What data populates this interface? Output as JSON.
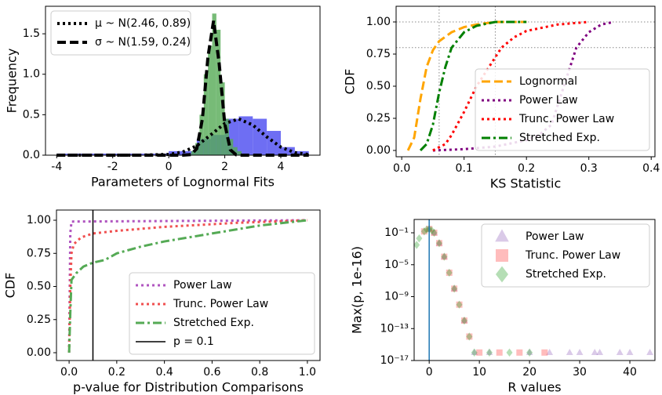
{
  "chart_data": [
    {
      "type": "histogram",
      "xlabel": "Parameters of Lognormal Fits",
      "ylabel": "Frequency",
      "xlim": [
        -4.4,
        5.4
      ],
      "ylim": [
        0,
        1.84
      ],
      "xticks": [
        -4,
        -2,
        0,
        2,
        4
      ],
      "yticks": [
        {
          "value": 0,
          "label": "0.0"
        },
        {
          "value": 0.5,
          "label": "0.5"
        },
        {
          "value": 1,
          "label": "1.0"
        },
        {
          "value": 1.5,
          "label": "1.5"
        }
      ],
      "histograms": [
        {
          "color": "#4a4af0",
          "bins": [
            -4,
            -3.5,
            -3,
            -2.5,
            -2,
            -1.5,
            -1,
            -0.5,
            0,
            0.5,
            1,
            1.5,
            2,
            2.5,
            3,
            3.5,
            4,
            4.5,
            5
          ],
          "values": [
            0.02,
            0.02,
            0.02,
            0.02,
            0.02,
            0.02,
            0.02,
            0.02,
            0.05,
            0.05,
            0.2,
            0.25,
            0.45,
            0.48,
            0.45,
            0.3,
            0.1,
            0.05
          ]
        },
        {
          "color": "#55aa55",
          "bins": [
            0.8,
            0.95,
            1.1,
            1.25,
            1.4,
            1.55,
            1.7,
            1.85,
            2.0,
            2.15,
            2.3,
            2.45,
            2.6
          ],
          "values": [
            0.05,
            0.15,
            0.5,
            1.0,
            1.35,
            1.75,
            1.55,
            0.9,
            0.45,
            0.2,
            0.1,
            0.05
          ]
        }
      ],
      "series": [
        {
          "name": "μ ~ N(2.46, 0.89)",
          "color": "#000000",
          "linestyle": "dotted",
          "x": [
            -4,
            -1,
            0,
            0.5,
            1,
            1.5,
            2,
            2.5,
            3,
            3.5,
            4,
            4.5,
            5
          ],
          "values": [
            0,
            0.0002,
            0.0098,
            0.039,
            0.116,
            0.251,
            0.392,
            0.448,
            0.373,
            0.226,
            0.1,
            0.032,
            0.0076
          ]
        },
        {
          "name": "σ ~ N(1.59, 0.24)",
          "color": "#000000",
          "linestyle": "dashed",
          "x": [
            -4,
            0.5,
            0.8,
            1.0,
            1.2,
            1.4,
            1.6,
            1.8,
            2.0,
            2.2,
            2.4,
            2.6,
            3,
            5
          ],
          "values": [
            0,
            0,
            0.0074,
            0.081,
            0.444,
            1.215,
            1.66,
            1.133,
            0.386,
            0.066,
            0.0056,
            0,
            0,
            0
          ]
        }
      ],
      "legend": "upper left"
    },
    {
      "type": "line",
      "xlabel": "KS Statistic",
      "ylabel": "CDF",
      "xlim": [
        -0.009,
        0.406
      ],
      "ylim": [
        -0.049,
        1.122
      ],
      "xticks": [
        {
          "value": 0,
          "label": "0.0"
        },
        {
          "value": 0.1,
          "label": "0.1"
        },
        {
          "value": 0.2,
          "label": "0.2"
        },
        {
          "value": 0.3,
          "label": "0.3"
        },
        {
          "value": 0.4,
          "label": "0.4"
        }
      ],
      "yticks": [
        {
          "value": 0,
          "label": "0.00"
        },
        {
          "value": 0.25,
          "label": "0.25"
        },
        {
          "value": 0.5,
          "label": "0.50"
        },
        {
          "value": 0.75,
          "label": "0.75"
        },
        {
          "value": 1,
          "label": "1.00"
        }
      ],
      "ref_lines": {
        "x": [
          0.06,
          0.15
        ],
        "y": [
          0.8,
          1.0
        ],
        "color": "#888888"
      },
      "series": [
        {
          "name": "Lognormal",
          "color": "#ffa500",
          "linestyle": "dashed",
          "x": [
            0.01,
            0.02,
            0.03,
            0.04,
            0.05,
            0.06,
            0.08,
            0.1,
            0.12,
            0.15,
            0.2
          ],
          "values": [
            0,
            0.1,
            0.4,
            0.65,
            0.78,
            0.85,
            0.92,
            0.96,
            0.98,
            1,
            1
          ]
        },
        {
          "name": "Power Law",
          "color": "#800080",
          "linestyle": "dotted",
          "x": [
            0.05,
            0.1,
            0.15,
            0.2,
            0.22,
            0.24,
            0.25,
            0.26,
            0.27,
            0.28,
            0.3,
            0.32,
            0.34
          ],
          "values": [
            0,
            0.01,
            0.03,
            0.08,
            0.12,
            0.2,
            0.35,
            0.5,
            0.65,
            0.8,
            0.92,
            0.98,
            1
          ]
        },
        {
          "name": "Trunc. Power Law",
          "color": "#ff0000",
          "linestyle": "dotted",
          "x": [
            0.05,
            0.07,
            0.08,
            0.1,
            0.12,
            0.14,
            0.16,
            0.18,
            0.2,
            0.25,
            0.3
          ],
          "values": [
            0,
            0.05,
            0.12,
            0.3,
            0.5,
            0.65,
            0.8,
            0.88,
            0.93,
            0.98,
            1
          ]
        },
        {
          "name": "Stretched Exp.",
          "color": "#008000",
          "linestyle": "dashdot",
          "x": [
            0.03,
            0.04,
            0.05,
            0.06,
            0.07,
            0.08,
            0.1,
            0.12,
            0.15,
            0.2
          ],
          "values": [
            0,
            0.05,
            0.2,
            0.45,
            0.65,
            0.8,
            0.92,
            0.97,
            1,
            1
          ]
        }
      ],
      "legend": "lower right"
    },
    {
      "type": "line",
      "xlabel": "p-value for Distribution Comparisons",
      "ylabel": "CDF",
      "xlim": [
        -0.053,
        1.053
      ],
      "ylim": [
        -0.059,
        1.077
      ],
      "xticks": [
        {
          "value": 0,
          "label": "0.0"
        },
        {
          "value": 0.2,
          "label": "0.2"
        },
        {
          "value": 0.4,
          "label": "0.4"
        },
        {
          "value": 0.6,
          "label": "0.6"
        },
        {
          "value": 0.8,
          "label": "0.8"
        },
        {
          "value": 1,
          "label": "1.0"
        }
      ],
      "yticks": [
        {
          "value": 0,
          "label": "0.00"
        },
        {
          "value": 0.25,
          "label": "0.25"
        },
        {
          "value": 0.5,
          "label": "0.50"
        },
        {
          "value": 0.75,
          "label": "0.75"
        },
        {
          "value": 1,
          "label": "1.00"
        }
      ],
      "series": [
        {
          "name": "Power Law",
          "color": "#b055c0",
          "linestyle": "dotted",
          "x": [
            0,
            0.005,
            0.01,
            1
          ],
          "values": [
            0,
            0.9,
            0.99,
            1
          ]
        },
        {
          "name": "Trunc. Power Law",
          "color": "#f05050",
          "linestyle": "dotted",
          "x": [
            0,
            0.005,
            0.01,
            0.02,
            0.05,
            0.1,
            0.2,
            0.4,
            0.7,
            1
          ],
          "values": [
            0,
            0.5,
            0.75,
            0.82,
            0.87,
            0.9,
            0.92,
            0.95,
            0.98,
            1
          ]
        },
        {
          "name": "Stretched Exp.",
          "color": "#55aa55",
          "linestyle": "dashdot",
          "x": [
            0,
            0.005,
            0.01,
            0.03,
            0.06,
            0.1,
            0.15,
            0.2,
            0.3,
            0.4,
            0.6,
            0.8,
            1
          ],
          "values": [
            0,
            0.3,
            0.55,
            0.6,
            0.65,
            0.68,
            0.7,
            0.75,
            0.8,
            0.84,
            0.9,
            0.96,
            1
          ]
        }
      ],
      "vline": {
        "name": "p = 0.1",
        "value": 0.1,
        "color": "#000000"
      },
      "legend": "lower right"
    },
    {
      "type": "scatter",
      "xlabel": "R values",
      "ylabel": "Max(p, 1e-16)",
      "xlim": [
        -3,
        45
      ],
      "ylim": [
        1e-17,
        4.7
      ],
      "ylog": true,
      "xticks": [
        0,
        10,
        20,
        30,
        40
      ],
      "yticks": [
        {
          "value": 0.1,
          "label": "10⁻¹"
        },
        {
          "value": 1e-05,
          "label": "10⁻⁵"
        },
        {
          "value": 1e-09,
          "label": "10⁻⁹"
        },
        {
          "value": 1e-13,
          "label": "10⁻¹³"
        },
        {
          "value": 1e-17,
          "label": "10⁻¹⁷"
        }
      ],
      "series": [
        {
          "name": "Power Law",
          "color": "#9467bd",
          "marker": "triangle",
          "x": [
            0,
            1,
            2,
            3,
            5,
            7,
            9,
            12,
            20,
            24,
            28,
            30,
            33,
            34,
            38,
            40,
            44
          ],
          "values": [
            0.3,
            0.1,
            0.005,
            0.0001,
            1e-08,
            1e-12,
            1e-16,
            1e-16,
            1e-16,
            1e-16,
            1e-16,
            1e-16,
            1e-16,
            1e-16,
            1e-16,
            1e-16,
            1e-16
          ]
        },
        {
          "name": "Trunc. Power Law",
          "color": "#ff4040",
          "marker": "square",
          "x": [
            -1,
            0,
            1,
            2,
            3,
            4,
            5,
            6,
            7,
            8,
            10,
            14,
            18,
            23
          ],
          "values": [
            0.15,
            0.3,
            0.1,
            0.005,
            0.0001,
            1e-06,
            1e-08,
            1e-10,
            1e-12,
            1e-14,
            1e-16,
            1e-16,
            1e-16,
            1e-16
          ]
        },
        {
          "name": "Stretched Exp.",
          "color": "#2ca02c",
          "marker": "diamond",
          "x": [
            -2.5,
            -2,
            -1,
            -0.5,
            0,
            0.5,
            1,
            2,
            3,
            4,
            5,
            6,
            7,
            8,
            9,
            12,
            16,
            20
          ],
          "values": [
            0.003,
            0.02,
            0.15,
            0.25,
            0.3,
            0.2,
            0.1,
            0.005,
            0.0001,
            1e-06,
            1e-08,
            1e-10,
            1e-12,
            1e-14,
            1e-16,
            1e-16,
            1e-16,
            1e-16
          ]
        }
      ],
      "vline": {
        "value": 0,
        "color": "#1f77b4"
      },
      "legend": "upper right"
    }
  ]
}
